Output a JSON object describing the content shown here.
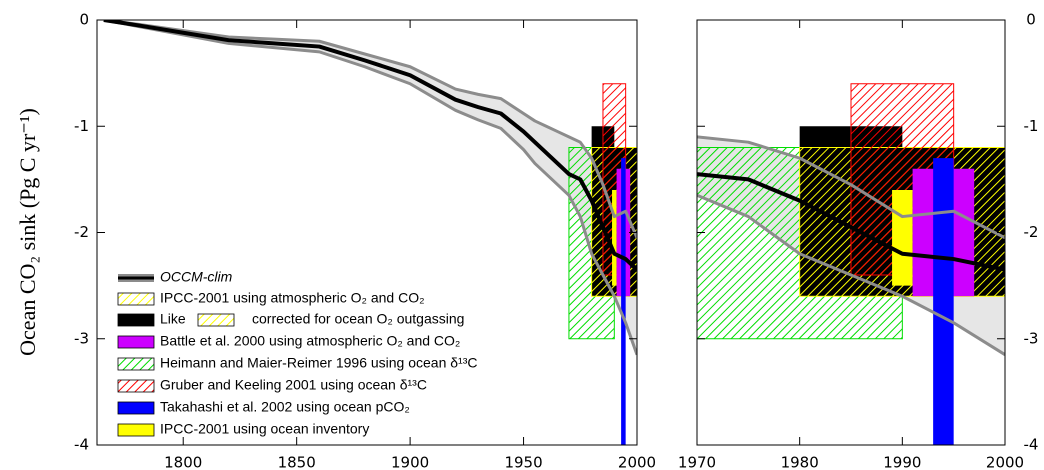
{
  "chart_data": {
    "type": "line",
    "ylabel": "Ocean CO₂ sink (Pg C yr⁻¹)",
    "ylim": [
      -4,
      0
    ],
    "yticks": [
      0,
      -1,
      -2,
      -3,
      -4
    ],
    "panels": [
      {
        "xlim": [
          1762,
          2000
        ],
        "xticks": [
          1800,
          1850,
          1900,
          1950,
          2000
        ]
      },
      {
        "xlim": [
          1970,
          2000
        ],
        "xticks": [
          1970,
          1980,
          1990,
          2000
        ]
      }
    ],
    "series": [
      {
        "name": "OCCM-clim",
        "color": "#000000",
        "band_color": "#8c8c8c",
        "x": [
          1765,
          1780,
          1800,
          1820,
          1840,
          1860,
          1880,
          1900,
          1920,
          1930,
          1940,
          1950,
          1955,
          1960,
          1965,
          1970,
          1975,
          1980,
          1985,
          1990,
          1995,
          2000
        ],
        "values": [
          0,
          -0.05,
          -0.12,
          -0.19,
          -0.22,
          -0.25,
          -0.38,
          -0.52,
          -0.75,
          -0.82,
          -0.88,
          -1.05,
          -1.15,
          -1.25,
          -1.35,
          -1.45,
          -1.5,
          -1.7,
          -1.95,
          -2.2,
          -2.25,
          -2.35
        ],
        "upper": [
          0,
          -0.04,
          -0.1,
          -0.16,
          -0.18,
          -0.2,
          -0.32,
          -0.44,
          -0.65,
          -0.7,
          -0.74,
          -0.88,
          -0.95,
          -1.0,
          -1.05,
          -1.1,
          -1.15,
          -1.3,
          -1.55,
          -1.85,
          -1.8,
          -2.05
        ],
        "lower": [
          0,
          -0.06,
          -0.14,
          -0.22,
          -0.26,
          -0.3,
          -0.44,
          -0.6,
          -0.85,
          -0.94,
          -1.02,
          -1.22,
          -1.35,
          -1.45,
          -1.55,
          -1.65,
          -1.85,
          -2.2,
          -2.4,
          -2.6,
          -2.85,
          -3.15
        ]
      }
    ],
    "estimates": [
      {
        "name": "IPCC-2001 using atmospheric O₂ and CO₂",
        "color": "#ffff00",
        "hatch": true,
        "x": [
          1980,
          2000
        ],
        "y": [
          -1.2,
          -2.6
        ]
      },
      {
        "name": [
          "Like",
          "corrected for ocean O₂ outgassing"
        ],
        "color": "#000000",
        "hatch": false,
        "x": [
          1980,
          1990
        ],
        "y": [
          -1,
          -2.6
        ]
      },
      {
        "name": "Battle et al. 2000 using atmospheric O₂ and CO₂",
        "color": "#cc00ff",
        "hatch": false,
        "x": [
          1991,
          1997
        ],
        "y": [
          -1.4,
          -2.6
        ]
      },
      {
        "name": "Heimann and Maier-Reimer 1996 using ocean δ¹³C",
        "color": "#00dd00",
        "hatch": true,
        "x": [
          1970,
          1990
        ],
        "y": [
          -1.2,
          -3
        ]
      },
      {
        "name": "Gruber and Keeling 2001 using ocean δ¹³C",
        "color": "#ff0000",
        "hatch": true,
        "x": [
          1985,
          1995
        ],
        "y": [
          -0.6,
          -2.4
        ]
      },
      {
        "name": "Takahashi et al. 2002 using ocean pCO₂",
        "color": "#0000ff",
        "hatch": false,
        "x": [
          1993,
          1995
        ],
        "y": [
          -1.3,
          -4
        ]
      },
      {
        "name": "IPCC-2001 using ocean inventory",
        "color": "#ffff00",
        "hatch": false,
        "x": [
          1989,
          1991
        ],
        "y": [
          -1.6,
          -2.5
        ]
      }
    ]
  }
}
